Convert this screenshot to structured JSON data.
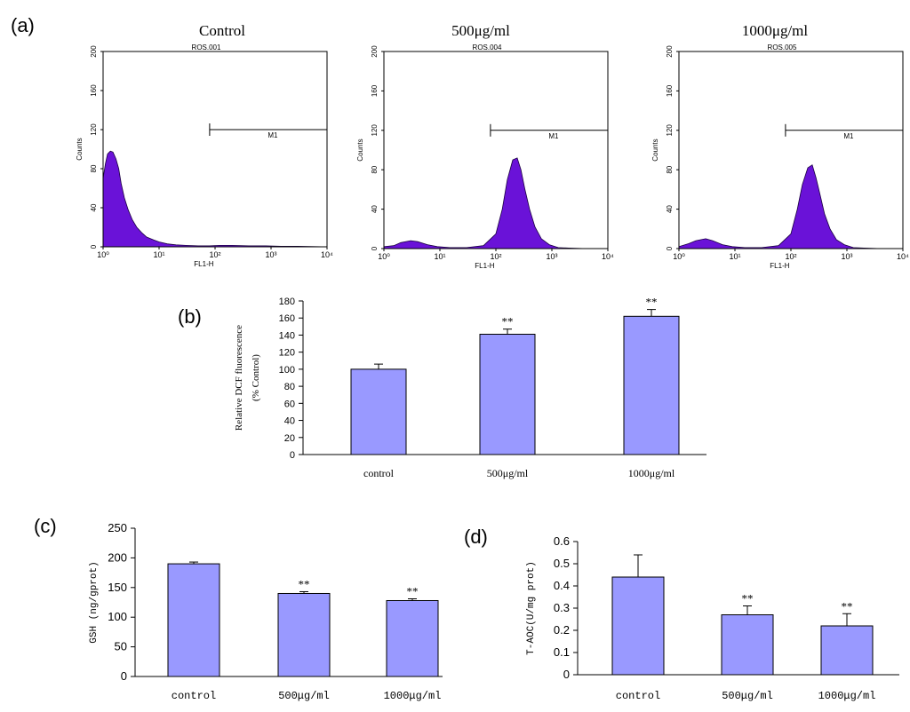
{
  "panels": {
    "a": "(a)",
    "b": "(b)",
    "c": "(c)",
    "d": "(d)"
  },
  "chart_data": [
    {
      "id": "a1",
      "type": "area",
      "title": "Control",
      "subtitle": "ROS.001",
      "xlabel": "FL1-H",
      "ylabel": "Counts",
      "xscale": "log",
      "xlim": [
        1,
        10000
      ],
      "ylim": [
        0,
        200
      ],
      "xticks": [
        {
          "v": 1,
          "label": "10⁰"
        },
        {
          "v": 10,
          "label": "10¹"
        },
        {
          "v": 100,
          "label": "10²"
        },
        {
          "v": 1000,
          "label": "10³"
        },
        {
          "v": 10000,
          "label": "10⁴"
        }
      ],
      "yticks": [
        0,
        40,
        80,
        120,
        160,
        200
      ],
      "color": "#6a12d8",
      "x": [
        1,
        1.1,
        1.2,
        1.35,
        1.5,
        1.7,
        1.9,
        2.1,
        2.4,
        2.8,
        3.3,
        4,
        5,
        6,
        8,
        10,
        14,
        20,
        30,
        50,
        80,
        120,
        200,
        400,
        800,
        1500,
        3000,
        10000
      ],
      "y": [
        70,
        85,
        95,
        98,
        97,
        90,
        80,
        65,
        50,
        38,
        28,
        20,
        14,
        10,
        7,
        5,
        3,
        2,
        1.5,
        1,
        1,
        1.5,
        1.5,
        1,
        1,
        0.5,
        0.5,
        0
      ],
      "marker": {
        "label": "M1",
        "x_start": 80,
        "x_end": 10000,
        "y": 120
      }
    },
    {
      "id": "a2",
      "type": "area",
      "title": "500μg/ml",
      "subtitle": "ROS.004",
      "xlabel": "FL1-H",
      "ylabel": "Counts",
      "xscale": "log",
      "xlim": [
        1,
        10000
      ],
      "ylim": [
        0,
        200
      ],
      "xticks": [
        {
          "v": 1,
          "label": "10⁰"
        },
        {
          "v": 10,
          "label": "10¹"
        },
        {
          "v": 100,
          "label": "10²"
        },
        {
          "v": 1000,
          "label": "10³"
        },
        {
          "v": 10000,
          "label": "10⁴"
        }
      ],
      "yticks": [
        0,
        40,
        80,
        120,
        160,
        200
      ],
      "color": "#6a12d8",
      "x": [
        1,
        1.5,
        2,
        3,
        4,
        6,
        9,
        15,
        30,
        60,
        100,
        130,
        160,
        200,
        240,
        280,
        330,
        400,
        500,
        650,
        900,
        1300,
        2000,
        4000,
        10000
      ],
      "y": [
        2,
        3,
        6,
        8,
        7,
        4,
        2,
        1,
        1,
        3,
        15,
        40,
        70,
        90,
        92,
        80,
        60,
        40,
        22,
        10,
        4,
        1,
        0.5,
        0,
        0
      ],
      "marker": {
        "label": "M1",
        "x_start": 80,
        "x_end": 10000,
        "y": 120
      }
    },
    {
      "id": "a3",
      "type": "area",
      "title": "1000μg/ml",
      "subtitle": "ROS.005",
      "xlabel": "FL1-H",
      "ylabel": "Counts",
      "xscale": "log",
      "xlim": [
        1,
        10000
      ],
      "ylim": [
        0,
        200
      ],
      "xticks": [
        {
          "v": 1,
          "label": "10⁰"
        },
        {
          "v": 10,
          "label": "10¹"
        },
        {
          "v": 100,
          "label": "10²"
        },
        {
          "v": 1000,
          "label": "10³"
        },
        {
          "v": 10000,
          "label": "10⁴"
        }
      ],
      "yticks": [
        0,
        40,
        80,
        120,
        160,
        200
      ],
      "color": "#6a12d8",
      "x": [
        1,
        1.5,
        2,
        3,
        4,
        6,
        9,
        15,
        30,
        60,
        100,
        130,
        160,
        200,
        240,
        280,
        330,
        400,
        500,
        650,
        900,
        1300,
        2000,
        4000,
        10000
      ],
      "y": [
        2,
        5,
        8,
        10,
        8,
        4,
        2,
        1,
        1,
        3,
        15,
        40,
        65,
        82,
        85,
        72,
        55,
        35,
        20,
        9,
        4,
        1,
        0.5,
        0,
        0
      ],
      "marker": {
        "label": "M1",
        "x_start": 80,
        "x_end": 10000,
        "y": 120
      }
    },
    {
      "id": "b",
      "type": "bar",
      "categories": [
        "control",
        "500μg/ml",
        "1000μg/ml"
      ],
      "values": [
        100,
        141,
        162
      ],
      "errors": [
        6,
        6,
        8
      ],
      "annotations": [
        "",
        "**",
        "**"
      ],
      "ylabel": "Relative DCF fluorescence",
      "ylabel2": "(% Control)",
      "ylim": [
        0,
        180
      ],
      "yticks": [
        0,
        20,
        40,
        60,
        80,
        100,
        120,
        140,
        160,
        180
      ],
      "color": "#9999ff"
    },
    {
      "id": "c",
      "type": "bar",
      "categories": [
        "control",
        "500μg/ml",
        "1000μg/ml"
      ],
      "values": [
        190,
        140,
        128
      ],
      "errors": [
        3,
        3,
        3
      ],
      "annotations": [
        "",
        "**",
        "**"
      ],
      "ylabel": "GSH (ng/gprot)",
      "ylim": [
        0,
        250
      ],
      "yticks": [
        0,
        50,
        100,
        150,
        200,
        250
      ],
      "color": "#9999ff"
    },
    {
      "id": "d",
      "type": "bar",
      "categories": [
        "control",
        "500μg/ml",
        "1000μg/ml"
      ],
      "values": [
        0.44,
        0.27,
        0.22
      ],
      "errors": [
        0.1,
        0.04,
        0.055
      ],
      "annotations": [
        "",
        "**",
        "**"
      ],
      "ylabel": "T-AOC(U/mg prot)",
      "ylim": [
        0,
        0.6
      ],
      "yticks": [
        0,
        0.1,
        0.2,
        0.3,
        0.4,
        0.5,
        0.6
      ],
      "color": "#9999ff"
    }
  ]
}
